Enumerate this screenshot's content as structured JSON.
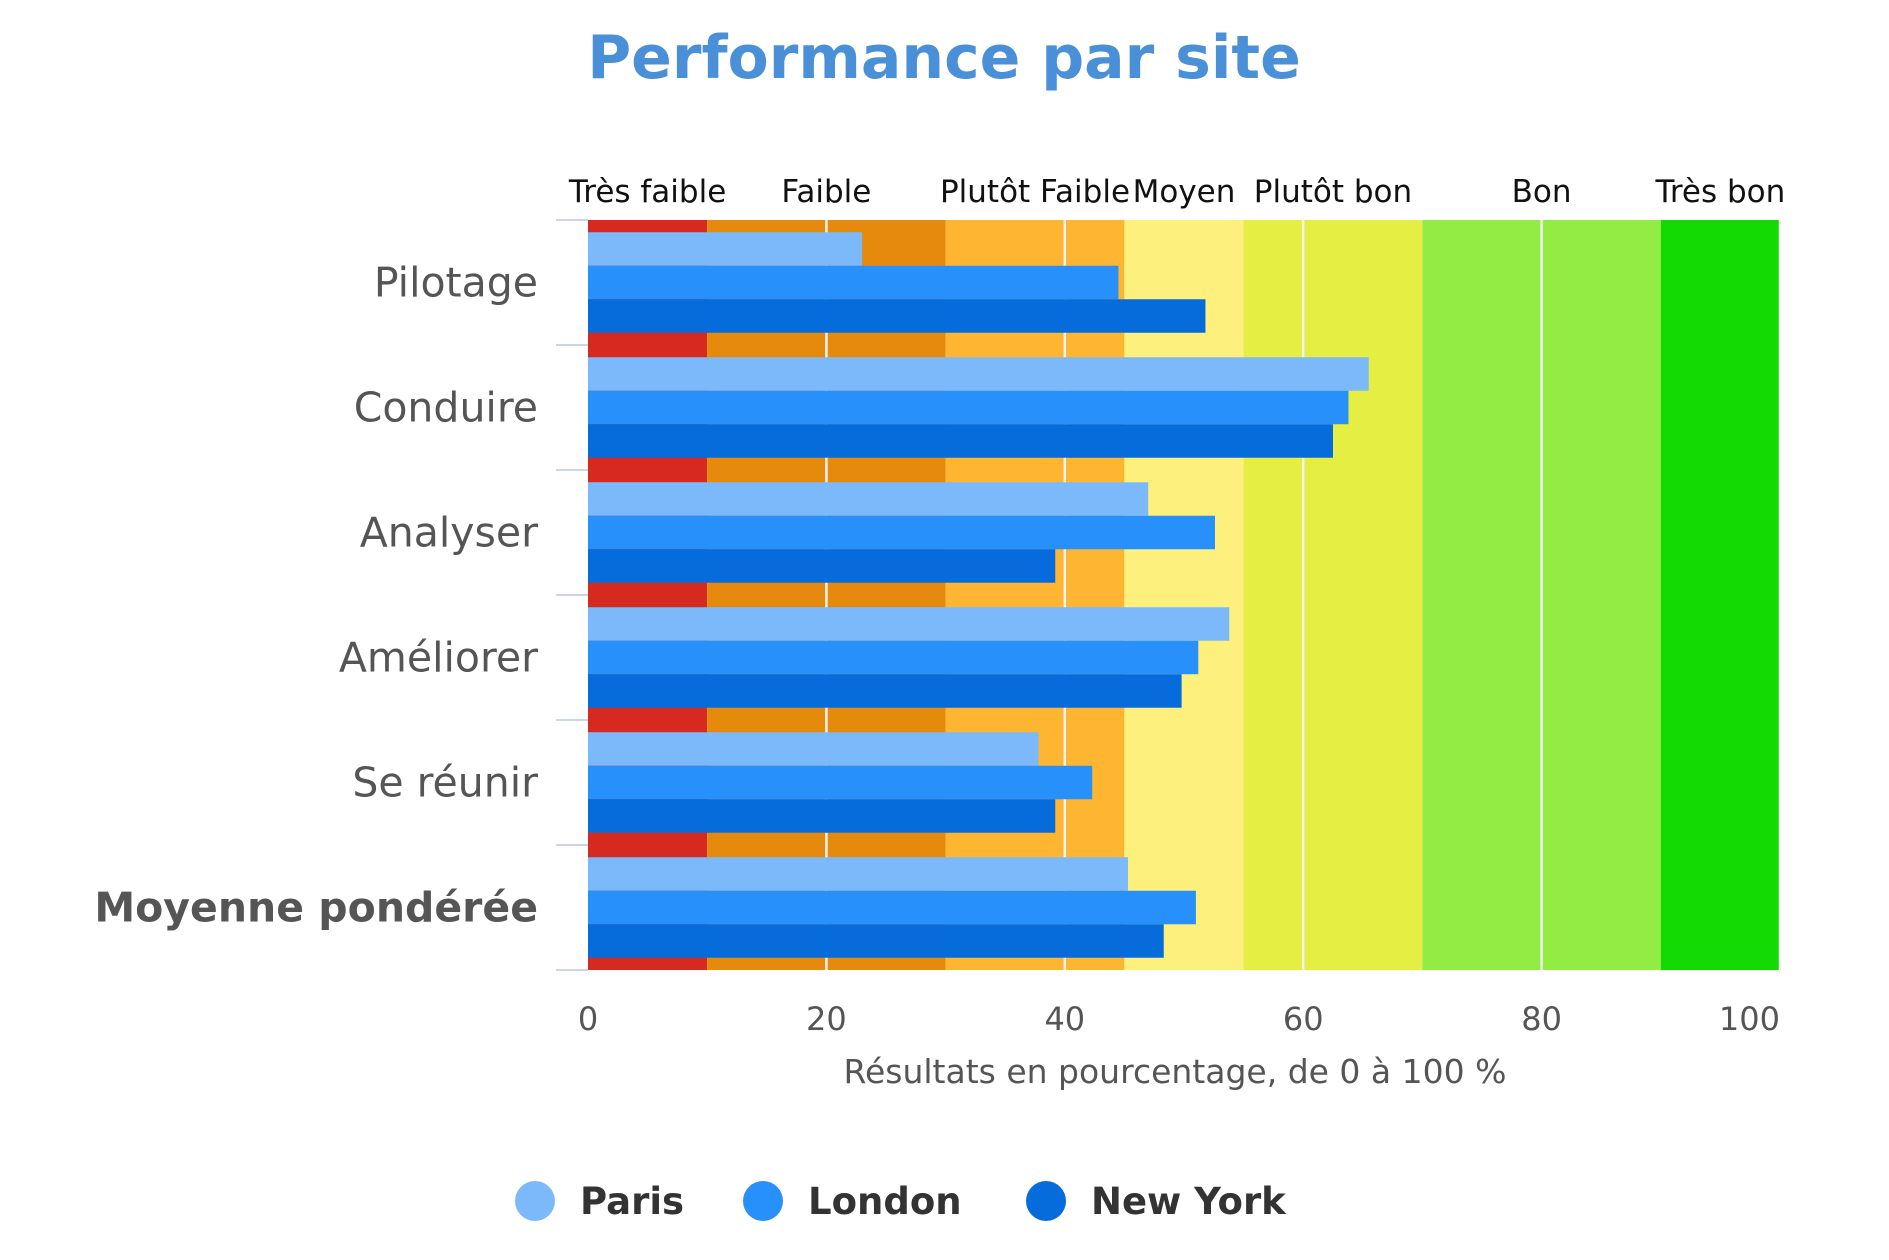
{
  "chart_data": {
    "type": "bar",
    "orientation": "horizontal",
    "title": "Performance par site",
    "xlabel": "Résultats en pourcentage, de 0 à 100 %",
    "xlim": [
      0,
      100
    ],
    "x_ticks": [
      "0",
      "20",
      "40",
      "60",
      "80",
      "100"
    ],
    "categories": [
      "Pilotage",
      "Conduire",
      "Analyser",
      "Améliorer",
      "Se réunir",
      "Moyenne pondérée"
    ],
    "bold_categories": [
      "Moyenne pondérée"
    ],
    "series": [
      {
        "name": "Paris",
        "color": "#7cb9fb",
        "values": [
          23,
          65.5,
          47,
          53.8,
          37.8,
          45.3
        ]
      },
      {
        "name": "London",
        "color": "#2890fa",
        "values": [
          44.5,
          63.8,
          52.6,
          51.2,
          42.3,
          51
        ]
      },
      {
        "name": "New York",
        "color": "#066cdc",
        "values": [
          51.8,
          62.5,
          39.2,
          49.8,
          39.2,
          48.3
        ]
      }
    ],
    "bands": [
      {
        "label": "Très faible",
        "from": 0,
        "to": 10,
        "color": "#d62a20"
      },
      {
        "label": "Faible",
        "from": 10,
        "to": 30,
        "color": "#e58a0c"
      },
      {
        "label": "Plutôt Faible",
        "from": 30,
        "to": 45,
        "color": "#fdb532"
      },
      {
        "label": "Moyen",
        "from": 45,
        "to": 55,
        "color": "#fef07c"
      },
      {
        "label": "Plutôt bon",
        "from": 55,
        "to": 70,
        "color": "#e4ee43"
      },
      {
        "label": "Bon",
        "from": 70,
        "to": 90,
        "color": "#92ec44"
      },
      {
        "label": "Très bon",
        "from": 90,
        "to": 100,
        "color": "#14da03"
      }
    ],
    "grid": true,
    "legend_position": "bottom-center",
    "title_color": "#4a90d9"
  }
}
